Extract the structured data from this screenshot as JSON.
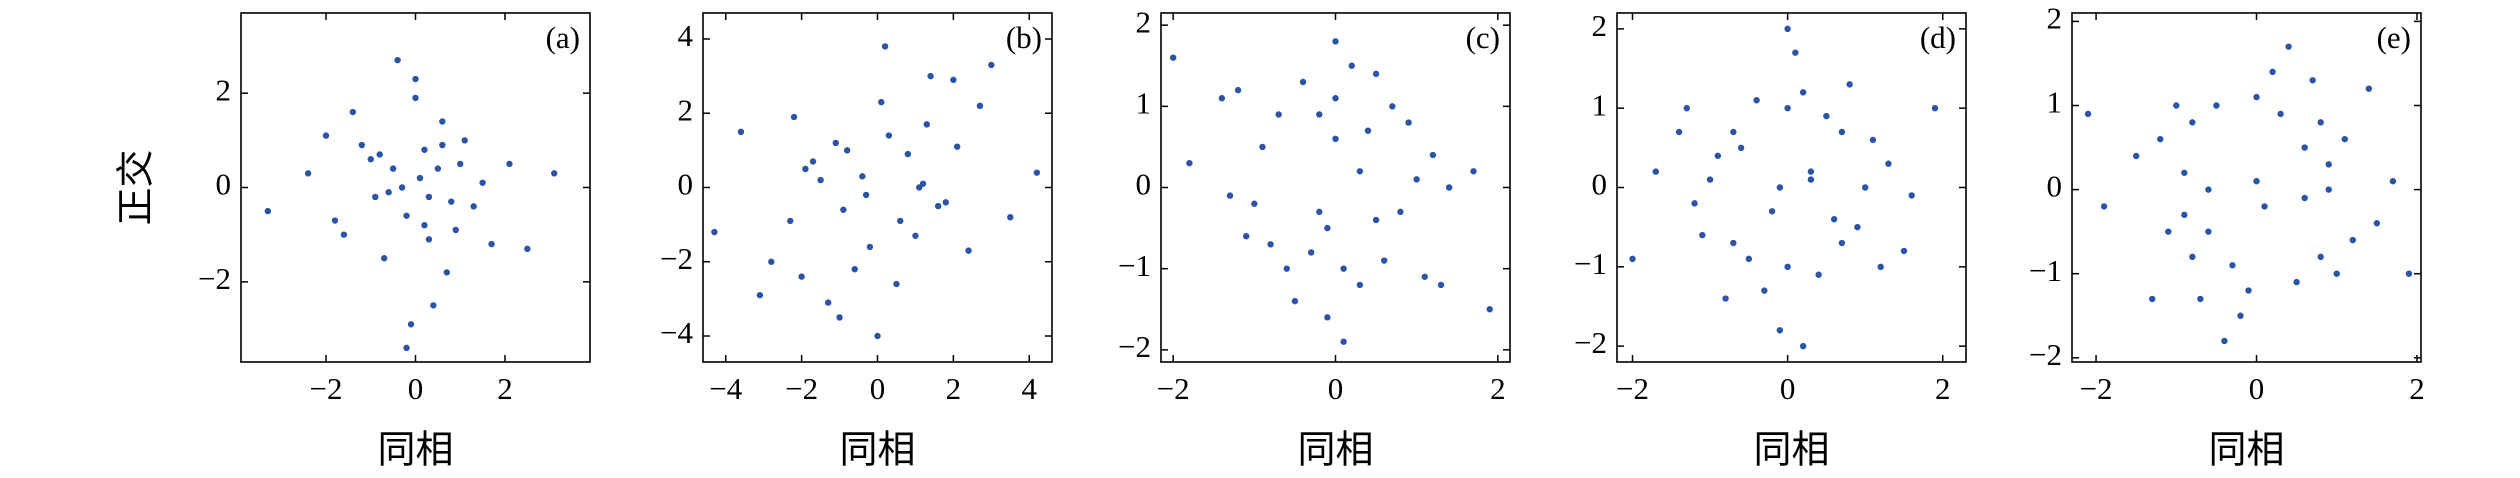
{
  "chart_data": [
    {
      "type": "scatter",
      "label": "(a)",
      "xlabel": "同相",
      "ylabel": "正交",
      "color": "#2b54a6",
      "xlim": [
        -3.9,
        3.9
      ],
      "ylim": [
        -3.7,
        3.7
      ],
      "xticks": [
        {
          "value": -2,
          "label": "−2"
        },
        0,
        2
      ],
      "yticks": [
        {
          "value": -2,
          "label": "−2"
        },
        0,
        2
      ],
      "x": [
        0.1,
        -0.5,
        0.8,
        -1.2,
        0.3,
        1.5,
        -0.2,
        0.6,
        -0.9,
        0.0,
        2.1,
        -1.8,
        0.4,
        -0.3,
        1.1,
        -0.7,
        0.2,
        -2.4,
        0.9,
        -0.1,
        1.7,
        -1.4,
        0.5,
        -0.6,
        3.1,
        -3.3,
        0.0,
        1.3,
        -1.0,
        0.7,
        -0.4,
        2.5,
        -2.0,
        0.2,
        -0.8,
        1.0,
        0.3,
        -1.6,
        0.6,
        -0.2
      ],
      "y": [
        0.2,
        0.4,
        -0.3,
        0.9,
        -1.1,
        0.1,
        -0.6,
        1.4,
        -0.2,
        2.3,
        0.5,
        -0.7,
        -2.5,
        0.0,
        1.0,
        -1.5,
        0.8,
        0.3,
        -0.9,
        -2.9,
        -1.2,
        1.6,
        0.4,
        -0.1,
        0.3,
        -0.5,
        1.9,
        -0.4,
        0.6,
        -1.8,
        2.7,
        -1.3,
        1.1,
        -0.8,
        0.7,
        0.5,
        -0.2,
        -1.0,
        0.9,
        -3.4
      ]
    },
    {
      "type": "scatter",
      "label": "(b)",
      "xlabel": "同相",
      "color": "#2b54a6",
      "xlim": [
        -4.6,
        4.6
      ],
      "ylim": [
        -4.7,
        4.7
      ],
      "xticks": [
        {
          "value": -4,
          "label": "−4"
        },
        {
          "value": -2,
          "label": "−2"
        },
        0,
        2,
        4
      ],
      "yticks": [
        {
          "value": -4,
          "label": "−4"
        },
        {
          "value": -2,
          "label": "−2"
        },
        0,
        2,
        4
      ],
      "x": [
        1.2,
        -1.5,
        0.3,
        -0.2,
        2.1,
        -2.3,
        1.0,
        -1.1,
        0.1,
        1.8,
        -1.9,
        2.7,
        -2.8,
        0.5,
        -0.4,
        3.5,
        -3.6,
        1.4,
        -1.3,
        0.8,
        -0.9,
        2.4,
        -2.2,
        0.0,
        4.2,
        -4.3,
        1.6,
        -1.7,
        0.2,
        -0.6,
        3.0,
        -3.1,
        1.1,
        -0.8,
        2.0,
        -2.0,
        0.6,
        -0.3,
        1.3,
        -1.0
      ],
      "y": [
        0.1,
        0.2,
        1.4,
        -1.6,
        1.1,
        -0.9,
        -1.3,
        1.2,
        2.3,
        -0.4,
        0.5,
        2.2,
        -2.0,
        -2.6,
        0.3,
        -0.8,
        1.5,
        3.0,
        -3.1,
        0.9,
        -0.6,
        -1.7,
        1.9,
        -4.0,
        0.4,
        -1.2,
        -0.5,
        0.7,
        3.8,
        -2.2,
        3.3,
        -2.9,
        0.0,
        1.0,
        2.9,
        -2.4,
        -0.9,
        -0.2,
        1.7,
        -3.5
      ]
    },
    {
      "type": "scatter",
      "label": "(c)",
      "xlabel": "同相",
      "color": "#2b54a6",
      "xlim": [
        -2.15,
        2.15
      ],
      "ylim": [
        -2.15,
        2.15
      ],
      "xticks": [
        {
          "value": -2,
          "label": "−2"
        },
        0,
        2
      ],
      "yticks": [
        {
          "value": -2,
          "label": "−2"
        },
        {
          "value": -1,
          "label": "−1"
        },
        0,
        1,
        2
      ],
      "x": [
        1.0,
        -1.0,
        0.0,
        0.1,
        1.2,
        -0.9,
        -0.2,
        0.3,
        0.8,
        -1.3,
        0.2,
        -0.1,
        1.4,
        -1.1,
        0.4,
        -0.3,
        0.7,
        -0.7,
        0.6,
        -0.6,
        1.7,
        -1.8,
        0.0,
        0.1,
        1.1,
        -1.2,
        -0.4,
        0.5,
        0.9,
        -0.8,
        1.9,
        -2.0,
        0.3,
        -0.2,
        0.5,
        -0.5,
        1.3,
        -1.4,
        0.0,
        -0.1
      ],
      "y": [
        0.1,
        -0.2,
        1.1,
        -1.0,
        0.4,
        0.5,
        0.9,
        -1.2,
        -0.3,
        -0.1,
        1.5,
        -1.6,
        0.0,
        -0.6,
        0.7,
        -0.8,
        1.0,
        0.9,
        -0.9,
        -1.0,
        0.2,
        0.3,
        1.8,
        -1.9,
        -1.1,
        1.2,
        1.3,
        -0.4,
        0.8,
        -0.7,
        -1.5,
        1.6,
        0.2,
        -0.3,
        1.4,
        -1.4,
        -1.2,
        1.1,
        0.6,
        -0.5
      ]
    },
    {
      "type": "scatter",
      "label": "(d)",
      "xlabel": "同相",
      "color": "#2b54a6",
      "xlim": [
        -2.2,
        2.3
      ],
      "ylim": [
        -2.2,
        2.2
      ],
      "xticks": [
        {
          "value": -2,
          "label": "−2"
        },
        0,
        2
      ],
      "yticks": [
        {
          "value": -2,
          "label": "−2"
        },
        {
          "value": -1,
          "label": "−1"
        },
        0,
        1,
        2
      ],
      "x": [
        1.0,
        -1.0,
        0.0,
        0.0,
        0.7,
        -0.7,
        0.7,
        -0.7,
        1.3,
        -1.2,
        0.2,
        -0.3,
        0.9,
        -0.9,
        0.5,
        -0.5,
        1.6,
        -1.7,
        0.1,
        -0.1,
        0.4,
        -0.4,
        1.1,
        -1.1,
        0.3,
        -0.2,
        1.9,
        -2.0,
        0.8,
        -0.8,
        0.6,
        -0.6,
        1.2,
        -1.3,
        0.0,
        0.2,
        1.5,
        -1.4,
        -0.1,
        0.3
      ],
      "y": [
        0.0,
        0.1,
        1.0,
        -1.0,
        0.7,
        0.7,
        -0.7,
        -0.7,
        0.3,
        -0.2,
        1.2,
        -1.3,
        -0.5,
        0.4,
        0.9,
        -0.9,
        -0.1,
        0.2,
        1.7,
        -1.8,
        -1.1,
        1.1,
        0.6,
        -0.6,
        0.2,
        -0.3,
        1.0,
        -0.9,
        1.3,
        -1.4,
        -0.4,
        0.5,
        -1.0,
        1.0,
        2.0,
        -2.0,
        -0.8,
        0.7,
        0.0,
        0.1
      ]
    },
    {
      "type": "scatter",
      "label": "(e)",
      "xlabel": "同相",
      "color": "#2b54a6",
      "xlim": [
        -2.3,
        2.05
      ],
      "ylim": [
        -2.05,
        2.1
      ],
      "xticks": [
        {
          "value": -2,
          "label": "−2"
        },
        0,
        2
      ],
      "yticks": [
        {
          "value": -2,
          "label": "−2"
        },
        {
          "value": -1,
          "label": "−1"
        },
        0,
        1,
        2
      ],
      "x": [
        0.8,
        -0.8,
        0.8,
        -0.8,
        1.1,
        -0.5,
        0.5,
        -1.1,
        0.9,
        -0.9,
        0.3,
        -0.3,
        1.4,
        -1.3,
        0.6,
        -0.6,
        1.0,
        -1.0,
        0.2,
        -0.2,
        1.7,
        -1.9,
        0.7,
        -0.7,
        1.2,
        -1.2,
        0.0,
        0.1,
        1.9,
        -2.1,
        0.4,
        -0.4,
        0.9,
        -0.9,
        1.5,
        -1.5,
        0.6,
        -0.6,
        0.0,
        -0.1
      ],
      "y": [
        0.8,
        0.8,
        -0.8,
        -0.8,
        0.6,
        1.0,
        -1.1,
        -0.5,
        0.3,
        -0.3,
        0.9,
        -0.9,
        1.2,
        -1.3,
        0.5,
        -0.5,
        -1.0,
        1.0,
        1.4,
        -1.5,
        0.1,
        -0.2,
        1.3,
        -1.3,
        -0.6,
        0.6,
        0.1,
        -0.2,
        -1.0,
        0.9,
        1.7,
        -1.8,
        0.0,
        0.2,
        -0.4,
        0.4,
        -0.1,
        0.0,
        1.1,
        -1.2
      ]
    }
  ]
}
